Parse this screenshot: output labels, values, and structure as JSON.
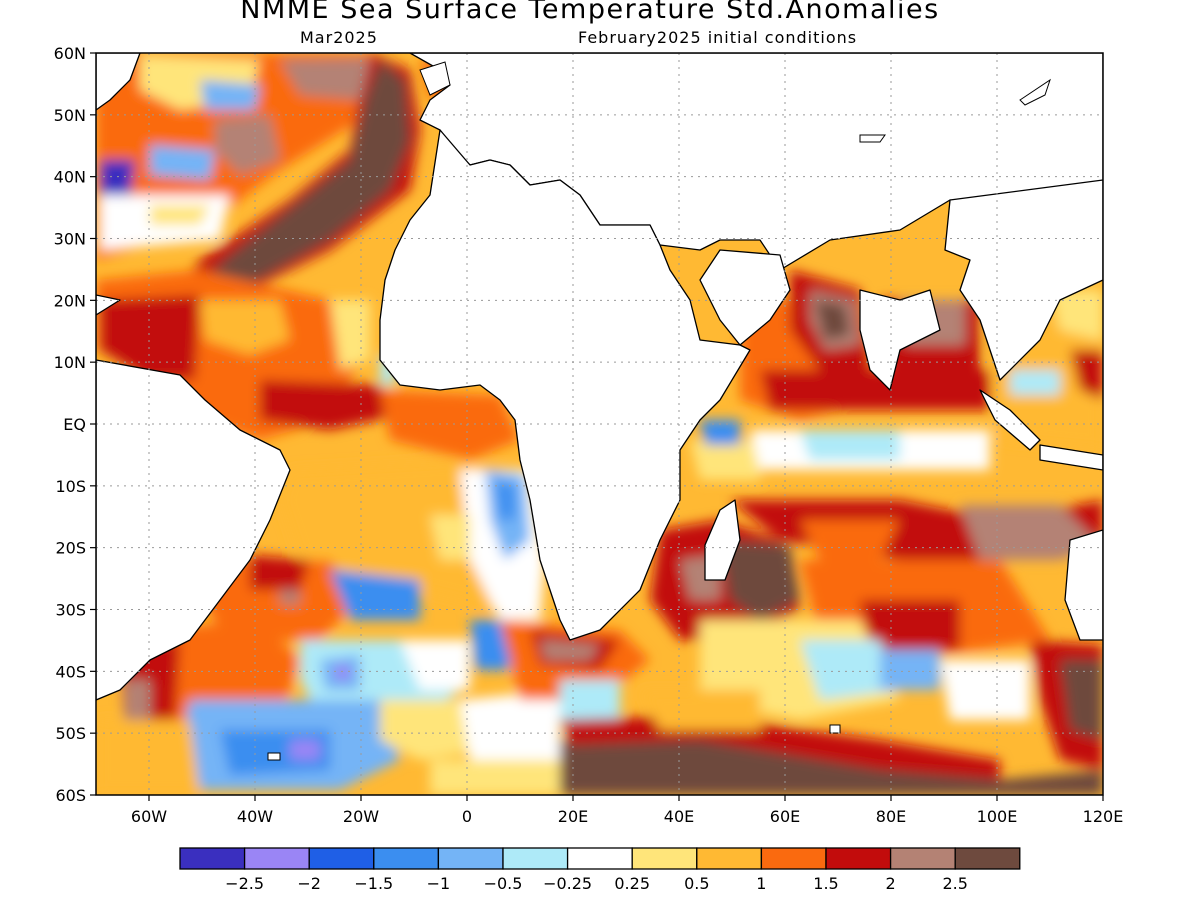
{
  "header": {
    "title": "NMME Sea Surface Temperature Std.Anomalies",
    "valid_month": "Mar2025",
    "initial_conditions": "February2025 initial conditions"
  },
  "map": {
    "lon_range": [
      -70,
      120
    ],
    "lat_range": [
      -60,
      60
    ],
    "lat_ticks": [
      "60N",
      "50N",
      "40N",
      "30N",
      "20N",
      "10N",
      "EQ",
      "10S",
      "20S",
      "30S",
      "40S",
      "50S",
      "60S"
    ],
    "lon_ticks": [
      "60W",
      "40W",
      "20W",
      "0",
      "20E",
      "40E",
      "60E",
      "80E",
      "100E",
      "120E"
    ],
    "grid": "dotted"
  },
  "colorbar": {
    "colors": [
      "#3a2fbf",
      "#9a85f5",
      "#1f5fe6",
      "#3b8ef0",
      "#74b4f6",
      "#aeeaf8",
      "#ffffff",
      "#ffe57a",
      "#ffb933",
      "#fa6a0f",
      "#c20c0c",
      "#b48274",
      "#6e4a3e"
    ],
    "labels": [
      "−2.5",
      "−2",
      "−1.5",
      "−1",
      "−0.5",
      "−0.25",
      "0.25",
      "0.5",
      "1",
      "1.5",
      "2",
      "2.5"
    ]
  }
}
